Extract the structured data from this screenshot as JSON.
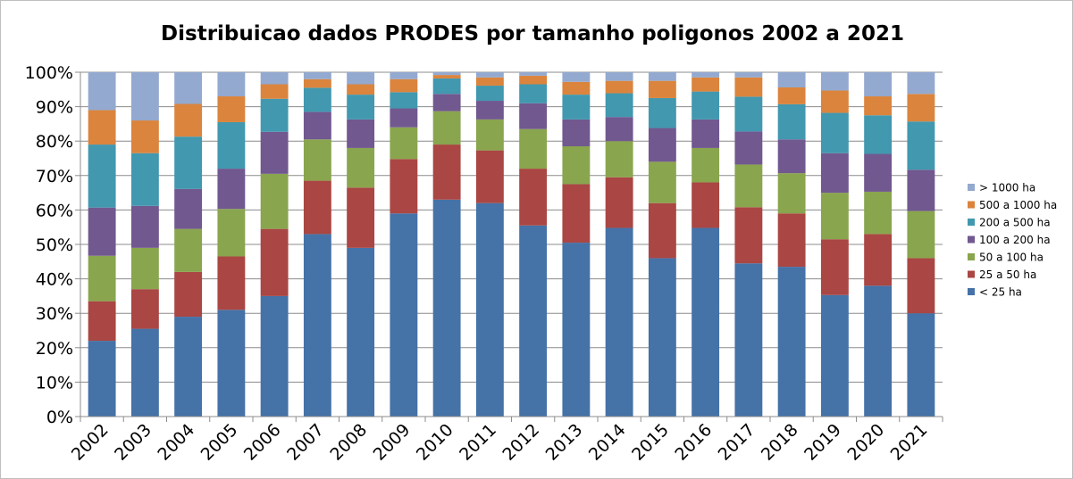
{
  "chart_data": {
    "type": "bar",
    "stacked": true,
    "percent": true,
    "title": "Distribuicao dados PRODES por tamanho poligonos 2002 a 2021",
    "xlabel": "",
    "ylabel": "",
    "ylim": [
      0,
      100
    ],
    "yticks": [
      "0%",
      "10%",
      "20%",
      "30%",
      "40%",
      "50%",
      "60%",
      "70%",
      "80%",
      "90%",
      "100%"
    ],
    "grid": "horizontal",
    "legend_position": "right",
    "categories": [
      "2002",
      "2003",
      "2004",
      "2005",
      "2006",
      "2007",
      "2008",
      "2009",
      "2010",
      "2011",
      "2012",
      "2013",
      "2014",
      "2015",
      "2016",
      "2017",
      "2018",
      "2019",
      "2020",
      "2021"
    ],
    "series": [
      {
        "name": "< 25 ha",
        "color": "#4572A7",
        "values": [
          22.0,
          25.5,
          29.0,
          31.0,
          35.0,
          53.0,
          49.0,
          59.0,
          63.0,
          62.0,
          55.5,
          50.5,
          54.8,
          46.0,
          54.8,
          44.5,
          43.5,
          35.3,
          38.0,
          30.0
        ]
      },
      {
        "name": "25 a 50 ha",
        "color": "#AA4643",
        "values": [
          11.5,
          11.5,
          13.0,
          15.5,
          19.5,
          15.5,
          17.5,
          15.8,
          16.0,
          15.3,
          16.5,
          17.0,
          14.7,
          16.0,
          13.2,
          16.3,
          15.5,
          16.2,
          15.0,
          16.0
        ]
      },
      {
        "name": "50 a 100 ha",
        "color": "#89A54E",
        "values": [
          13.2,
          12.0,
          12.5,
          13.8,
          16.0,
          12.0,
          11.5,
          9.2,
          9.7,
          9.0,
          11.5,
          11.0,
          10.5,
          12.0,
          10.0,
          12.4,
          11.7,
          13.5,
          12.3,
          13.7
        ]
      },
      {
        "name": "100 a 200 ha",
        "color": "#71588F",
        "values": [
          14.0,
          12.2,
          11.6,
          11.7,
          12.2,
          8.0,
          8.3,
          5.5,
          5.0,
          5.4,
          7.5,
          7.8,
          7.0,
          9.8,
          8.3,
          9.6,
          9.8,
          11.5,
          11.0,
          12.0
        ]
      },
      {
        "name": "200 a 500 ha",
        "color": "#4198AF",
        "values": [
          18.3,
          15.3,
          15.2,
          13.5,
          9.6,
          7.0,
          7.2,
          4.7,
          4.5,
          4.4,
          5.5,
          7.2,
          6.9,
          8.7,
          8.1,
          10.1,
          10.2,
          11.7,
          11.2,
          14.0
        ]
      },
      {
        "name": "500 a 1000 ha",
        "color": "#DB843D",
        "values": [
          10.0,
          9.5,
          9.5,
          7.5,
          4.2,
          2.5,
          3.0,
          3.8,
          1.0,
          2.4,
          2.5,
          3.7,
          3.6,
          5.0,
          4.1,
          5.6,
          4.9,
          6.5,
          5.5,
          8.0
        ]
      },
      {
        "name": "> 1000 ha",
        "color": "#93A9CF",
        "values": [
          11.0,
          14.0,
          9.2,
          7.0,
          3.5,
          2.0,
          3.5,
          2.0,
          0.8,
          1.5,
          1.0,
          2.8,
          2.5,
          2.5,
          1.5,
          1.5,
          4.4,
          5.3,
          7.0,
          6.3
        ]
      }
    ]
  }
}
